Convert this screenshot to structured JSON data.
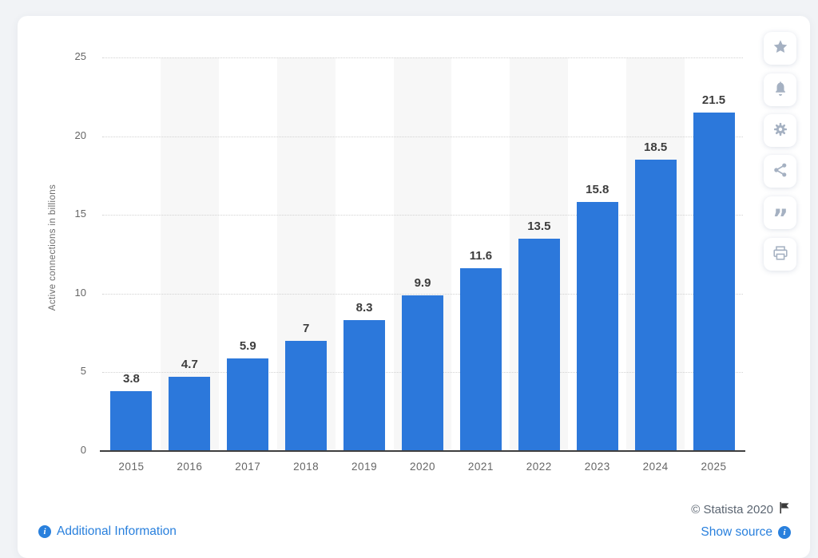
{
  "chart_data": {
    "type": "bar",
    "title": "",
    "categories": [
      "2015",
      "2016",
      "2017",
      "2018",
      "2019",
      "2020",
      "2021",
      "2022",
      "2023",
      "2024",
      "2025"
    ],
    "values": [
      3.8,
      4.7,
      5.9,
      7,
      8.3,
      9.9,
      11.6,
      13.5,
      15.8,
      18.5,
      21.5
    ],
    "value_labels": [
      "3.8",
      "4.7",
      "5.9",
      "7",
      "8.3",
      "9.9",
      "11.6",
      "13.5",
      "15.8",
      "18.5",
      "21.5"
    ],
    "xlabel": "",
    "ylabel": "Active connections in billions",
    "ylim": [
      0,
      25
    ],
    "yticks": [
      0,
      5,
      10,
      15,
      20,
      25
    ],
    "grid": "horizontal-dotted",
    "legend": "none",
    "plot_bands": "alternating columns, gray on 2016/2018/2020/2022/2024"
  },
  "colors": {
    "bar": "#2c78db",
    "band": "#f7f7f7",
    "link": "#2980dd",
    "copyright_text": "#5c6672",
    "icon_gray": "#a5b1c2",
    "page_bg": "#f1f3f6"
  },
  "toolbar": {
    "buttons": [
      {
        "name": "favorite",
        "icon": "star-icon"
      },
      {
        "name": "notifications",
        "icon": "bell-icon"
      },
      {
        "name": "settings",
        "icon": "gear-icon"
      },
      {
        "name": "share",
        "icon": "share-icon"
      },
      {
        "name": "cite",
        "icon": "quote-icon"
      },
      {
        "name": "print",
        "icon": "printer-icon"
      }
    ]
  },
  "footer": {
    "additional_information": "Additional Information",
    "copyright": "© Statista 2020",
    "show_source": "Show source"
  },
  "icons": {
    "quote_glyph": "”",
    "info_glyph": "i"
  }
}
